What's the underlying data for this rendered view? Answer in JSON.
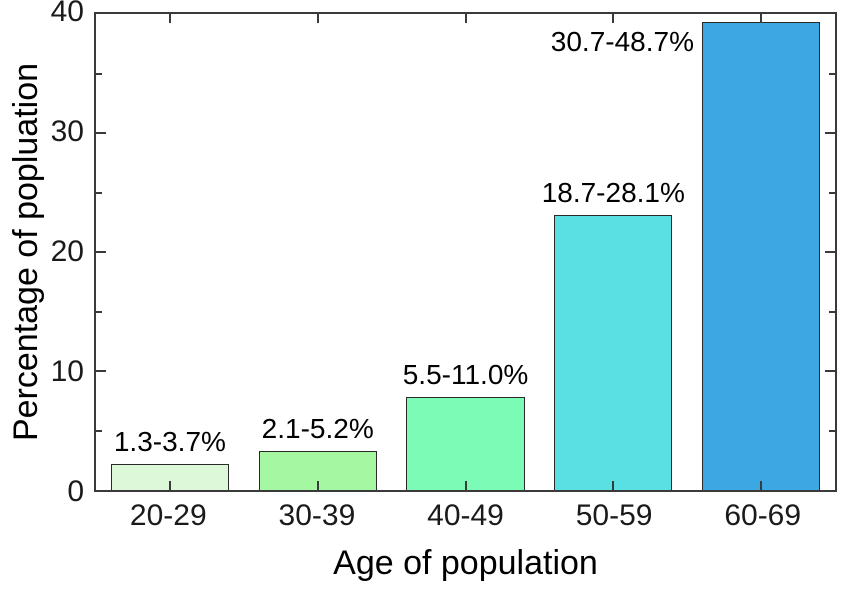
{
  "figure": {
    "background": "#ffffff",
    "axis_color": "#3a3a3a"
  },
  "chart_data": {
    "type": "bar",
    "title": "",
    "xlabel": "Age of population",
    "ylabel": "Percentage of popluation",
    "categories": [
      "20-29",
      "30-39",
      "40-49",
      "50-59",
      "60-69"
    ],
    "values": [
      2.2,
      3.3,
      7.8,
      23.1,
      39.3
    ],
    "bar_labels": [
      "1.3-3.7%",
      "2.1-5.2%",
      "5.5-11.0%",
      "18.7-28.1%",
      "30.7-48.7%"
    ],
    "bar_colors": [
      "#ddf8d8",
      "#a5f7a2",
      "#7bfbb5",
      "#59e0e3",
      "#3ba7e3"
    ],
    "bar_edge_color": "#2a2a2a",
    "ylim": [
      0,
      40
    ],
    "yticks": [
      0,
      10,
      20,
      30,
      40
    ],
    "yminorticks": [
      5,
      15,
      25,
      35
    ],
    "bar_width_fraction": 0.8,
    "grid": false,
    "legend": "none"
  }
}
